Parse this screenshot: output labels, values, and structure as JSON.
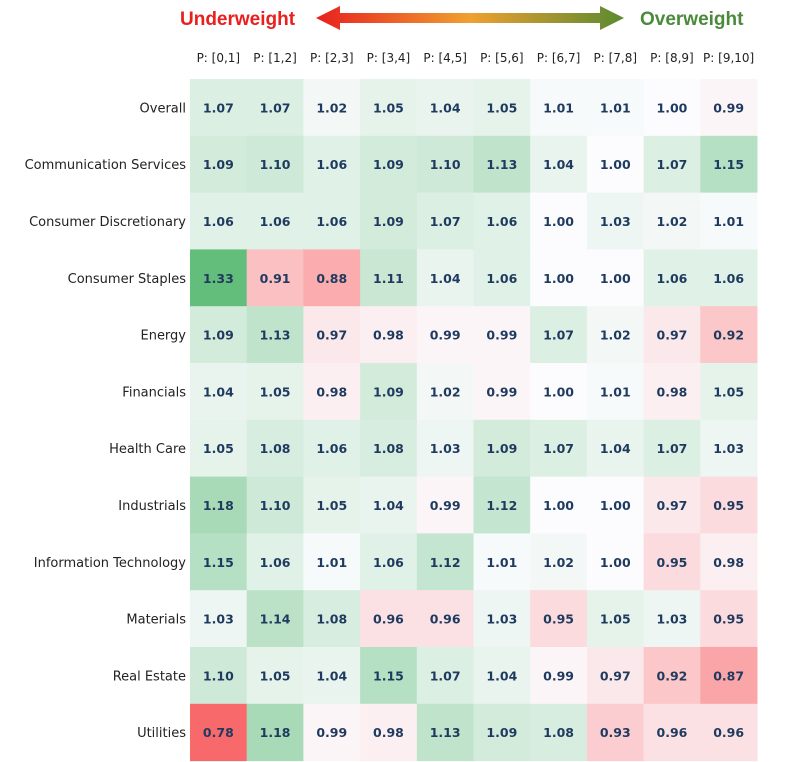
{
  "chart_data": {
    "type": "heatmap",
    "legend": {
      "left_label": "Underweight",
      "right_label": "Overweight"
    },
    "columns": [
      "P: [0,1]",
      "P: [1,2]",
      "P: [2,3]",
      "P: [3,4]",
      "P: [4,5]",
      "P: [5,6]",
      "P: [6,7]",
      "P: [7,8]",
      "P: [8,9]",
      "P: [9,10]"
    ],
    "rows": [
      "Overall",
      "Communication Services",
      "Consumer Discretionary",
      "Consumer Staples",
      "Energy",
      "Financials",
      "Health Care",
      "Industrials",
      "Information Technology",
      "Materials",
      "Real Estate",
      "Utilities"
    ],
    "values": [
      [
        1.07,
        1.07,
        1.02,
        1.05,
        1.04,
        1.05,
        1.01,
        1.01,
        1.0,
        0.99
      ],
      [
        1.09,
        1.1,
        1.06,
        1.09,
        1.1,
        1.13,
        1.04,
        1.0,
        1.07,
        1.15
      ],
      [
        1.06,
        1.06,
        1.06,
        1.09,
        1.07,
        1.06,
        1.0,
        1.03,
        1.02,
        1.01
      ],
      [
        1.33,
        0.91,
        0.88,
        1.11,
        1.04,
        1.06,
        1.0,
        1.0,
        1.06,
        1.06
      ],
      [
        1.09,
        1.13,
        0.97,
        0.98,
        0.99,
        0.99,
        1.07,
        1.02,
        0.97,
        0.92
      ],
      [
        1.04,
        1.05,
        0.98,
        1.09,
        1.02,
        0.99,
        1.0,
        1.01,
        0.98,
        1.05
      ],
      [
        1.05,
        1.08,
        1.06,
        1.08,
        1.03,
        1.09,
        1.07,
        1.04,
        1.07,
        1.03
      ],
      [
        1.18,
        1.1,
        1.05,
        1.04,
        0.99,
        1.12,
        1.0,
        1.0,
        0.97,
        0.95
      ],
      [
        1.15,
        1.06,
        1.01,
        1.06,
        1.12,
        1.01,
        1.02,
        1.0,
        0.95,
        0.98
      ],
      [
        1.03,
        1.14,
        1.08,
        0.96,
        0.96,
        1.03,
        0.95,
        1.05,
        1.03,
        0.95
      ],
      [
        1.1,
        1.05,
        1.04,
        1.15,
        1.07,
        1.04,
        0.99,
        0.97,
        0.92,
        0.87
      ],
      [
        0.78,
        1.18,
        0.99,
        0.98,
        1.13,
        1.09,
        1.08,
        0.93,
        0.96,
        0.96
      ]
    ],
    "colors": {
      "high": "#63be7b",
      "neutral": "#fcfcff",
      "low": "#f8696b",
      "text": "#1f3a5f"
    }
  }
}
